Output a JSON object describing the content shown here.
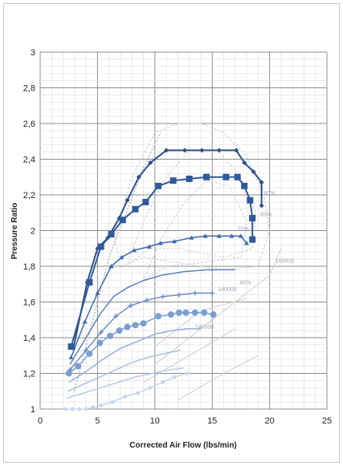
{
  "chart_data": {
    "type": "scatter",
    "title": "",
    "xlabel": "Corrected Air Flow (lbs/min)",
    "ylabel": "Pressure Ratio",
    "xlim": [
      0,
      25
    ],
    "ylim": [
      1,
      3
    ],
    "xticks": [
      "0",
      "5",
      "10",
      "15",
      "20",
      "25"
    ],
    "yticks": [
      "1",
      "1,2",
      "1,4",
      "1,6",
      "1,8",
      "2",
      "2,2",
      "2,4",
      "2,6",
      "2,8",
      "3"
    ],
    "grid": true,
    "legend": "none",
    "map_labels": [
      "160000",
      "140000",
      "65%",
      "60%",
      "70%",
      "60%",
      "140000"
    ],
    "series": [
      {
        "color": "#2f4f86",
        "marker": "diamond",
        "size": 3,
        "x": [
          2.9,
          4.1,
          5.0,
          5.9,
          6.9,
          7.6,
          8.6,
          9.6,
          11.0,
          12.6,
          14.1,
          15.6,
          17.1,
          17.8,
          18.6,
          19.3,
          19.3
        ],
        "y": [
          1.34,
          1.71,
          1.9,
          1.96,
          2.07,
          2.17,
          2.3,
          2.38,
          2.45,
          2.45,
          2.45,
          2.45,
          2.45,
          2.38,
          2.33,
          2.27,
          2.14
        ]
      },
      {
        "color": "#2f5a9a",
        "marker": "square",
        "size": 4,
        "x": [
          2.7,
          4.3,
          5.3,
          6.2,
          7.2,
          8.3,
          9.2,
          10.3,
          11.6,
          13.0,
          14.5,
          16.2,
          17.2,
          17.8,
          18.3,
          18.5,
          18.5
        ],
        "y": [
          1.35,
          1.71,
          1.91,
          1.98,
          2.06,
          2.12,
          2.16,
          2.25,
          2.28,
          2.29,
          2.3,
          2.3,
          2.3,
          2.25,
          2.17,
          2.07,
          1.95
        ]
      },
      {
        "color": "#3e6ab0",
        "marker": "triangle",
        "size": 3,
        "x": [
          2.7,
          3.9,
          5.0,
          6.2,
          7.1,
          8.2,
          9.5,
          10.5,
          11.7,
          13.2,
          14.4,
          15.6,
          16.7,
          17.5,
          18.0
        ],
        "y": [
          1.29,
          1.49,
          1.65,
          1.8,
          1.85,
          1.89,
          1.91,
          1.93,
          1.94,
          1.96,
          1.97,
          1.97,
          1.97,
          1.97,
          1.93
        ]
      },
      {
        "color": "#5a80bf",
        "marker": "none",
        "size": 0,
        "x": [
          2.6,
          4.0,
          5.2,
          6.4,
          7.6,
          9.0,
          10.6,
          12.5,
          14.5,
          16.0,
          17.0
        ],
        "y": [
          1.25,
          1.4,
          1.53,
          1.63,
          1.68,
          1.72,
          1.75,
          1.77,
          1.78,
          1.78,
          1.78
        ]
      },
      {
        "color": "#6b8fc8",
        "marker": "cross",
        "size": 3,
        "x": [
          2.6,
          4.0,
          5.3,
          6.6,
          7.9,
          9.3,
          10.7,
          12.1,
          13.5,
          15.0
        ],
        "y": [
          1.22,
          1.33,
          1.43,
          1.52,
          1.58,
          1.61,
          1.63,
          1.64,
          1.65,
          1.65
        ]
      },
      {
        "color": "#7c9dd0",
        "marker": "circle",
        "size": 4,
        "x": [
          2.5,
          3.3,
          4.3,
          5.2,
          6.1,
          6.9,
          7.6,
          8.3,
          9.0,
          10.3,
          11.4,
          12.1,
          12.7,
          13.5,
          14.3,
          15.1
        ],
        "y": [
          1.2,
          1.24,
          1.31,
          1.37,
          1.41,
          1.44,
          1.46,
          1.47,
          1.48,
          1.52,
          1.53,
          1.54,
          1.54,
          1.54,
          1.54,
          1.53
        ]
      },
      {
        "color": "#93afd9",
        "marker": "none",
        "size": 0,
        "x": [
          2.5,
          4.0,
          5.5,
          7.0,
          8.5,
          10.0,
          11.5,
          12.8,
          14.0
        ],
        "y": [
          1.15,
          1.21,
          1.28,
          1.34,
          1.38,
          1.42,
          1.44,
          1.45,
          1.45
        ]
      },
      {
        "color": "#a8c0e0",
        "marker": "none",
        "size": 0,
        "x": [
          2.4,
          3.8,
          5.2,
          6.6,
          8.0,
          9.4,
          10.8,
          12.2
        ],
        "y": [
          1.1,
          1.14,
          1.18,
          1.22,
          1.26,
          1.29,
          1.31,
          1.33
        ]
      },
      {
        "color": "#b8cce8",
        "marker": "none",
        "size": 0,
        "x": [
          2.3,
          3.8,
          5.3,
          6.8,
          8.3,
          9.8,
          11.3,
          12.5
        ],
        "y": [
          1.06,
          1.09,
          1.12,
          1.15,
          1.18,
          1.2,
          1.22,
          1.23
        ]
      },
      {
        "color": "#c5d6ee",
        "marker": "diamond",
        "size": 3,
        "x": [
          2.2,
          2.8,
          3.4,
          4.0,
          4.6,
          5.3,
          6.3,
          7.4,
          8.5,
          9.6,
          10.7,
          11.7,
          12.8
        ],
        "y": [
          1.0,
          1.0,
          1.0,
          1.0,
          1.01,
          1.02,
          1.04,
          1.07,
          1.09,
          1.12,
          1.15,
          1.18,
          1.2
        ]
      }
    ]
  }
}
